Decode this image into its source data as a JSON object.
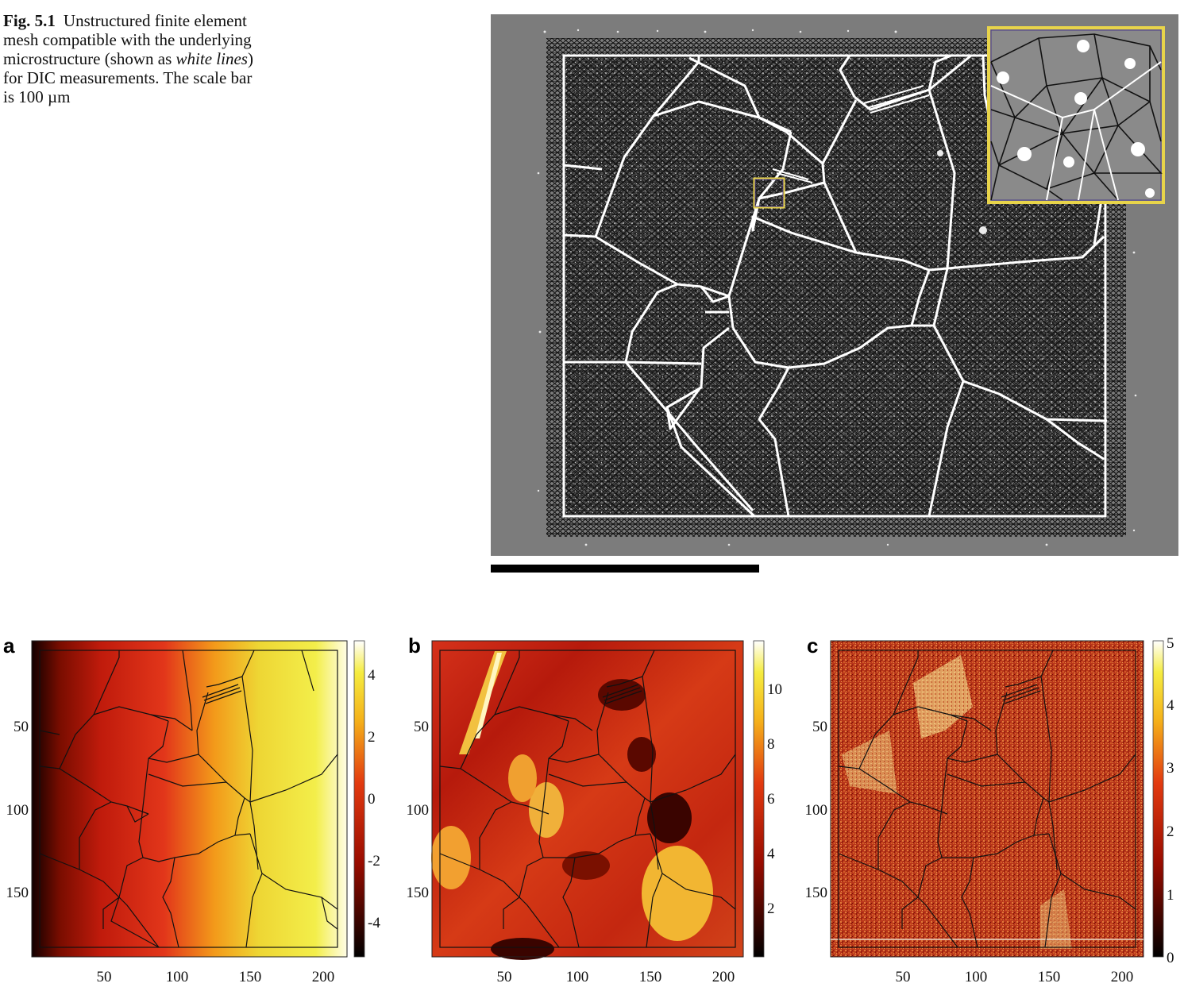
{
  "caption": {
    "label": "Fig. 5.1",
    "text_1": "Unstructured finite element mesh compatible with the underlying microstructure (shown as ",
    "emphasis": "white lines",
    "text_2": ") for DIC measurements. The scale bar is 100 µm"
  },
  "colors": {
    "micrograph_bg": "#7c7c7c",
    "mesh_lines": "#000000",
    "grain_boundaries": "#ffffff",
    "inset_frame": "#e8d44a"
  },
  "chart_data": [
    {
      "type": "heatmap",
      "panel_label": "a",
      "x_ticks": [
        50,
        100,
        150,
        200
      ],
      "y_ticks": [
        50,
        100,
        150
      ],
      "xlim": [
        0,
        215
      ],
      "ylim": [
        185,
        0
      ],
      "colorbar": {
        "ticks": [
          -4,
          -2,
          0,
          2,
          4
        ],
        "range": [
          -5.5,
          4.5
        ],
        "colormap": "hot"
      }
    },
    {
      "type": "heatmap",
      "panel_label": "b",
      "x_ticks": [
        50,
        100,
        150,
        200
      ],
      "y_ticks": [
        50,
        100,
        150
      ],
      "xlim": [
        0,
        215
      ],
      "ylim": [
        185,
        0
      ],
      "colorbar": {
        "ticks": [
          2,
          4,
          6,
          8,
          10
        ],
        "range": [
          0.5,
          11.5
        ],
        "colormap": "hot"
      }
    },
    {
      "type": "heatmap",
      "panel_label": "c",
      "x_ticks": [
        50,
        100,
        150,
        200
      ],
      "y_ticks": [
        50,
        100,
        150
      ],
      "xlim": [
        0,
        215
      ],
      "ylim": [
        185,
        0
      ],
      "colorbar": {
        "ticks": [
          0,
          1,
          2,
          3,
          4,
          5
        ],
        "range": [
          0,
          5
        ],
        "colormap": "hot"
      }
    }
  ]
}
